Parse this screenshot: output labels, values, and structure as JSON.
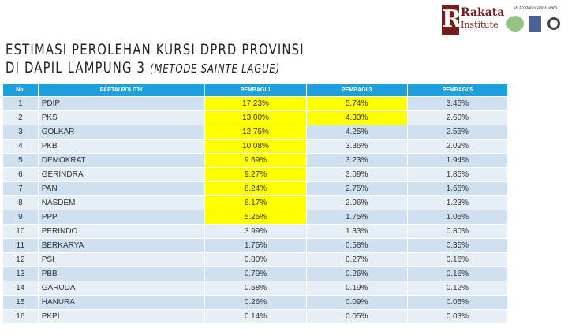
{
  "title": {
    "line1": "ESTIMASI PEROLEHAN KURSI DPRD PROVINSI",
    "line2": "DI DAPIL LAMPUNG 3",
    "subtitle": "(METODE SAINTE LAGUE)"
  },
  "logo": {
    "name": "Rakata",
    "sub": "Institute",
    "collab": "in Collaboration with"
  },
  "table": {
    "headers": [
      "No.",
      "PARTAI POLITIK",
      "PEMBAGI 1",
      "PEMBAGI 3",
      "PEMBAGI 5"
    ],
    "highlight_color": "#ffff00",
    "rows": [
      {
        "no": "1",
        "party": "PDIP",
        "p1": "17.23%",
        "p3": "5.74%",
        "p5": "3.45%",
        "h1": true,
        "h3": true
      },
      {
        "no": "2",
        "party": "PKS",
        "p1": "13.00%",
        "p3": "4.33%",
        "p5": "2.60%",
        "h1": true,
        "h3": true
      },
      {
        "no": "3",
        "party": "GOLKAR",
        "p1": "12.75%",
        "p3": "4.25%",
        "p5": "2.55%",
        "h1": true
      },
      {
        "no": "4",
        "party": "PKB",
        "p1": "10.08%",
        "p3": "3.36%",
        "p5": "2.02%",
        "h1": true
      },
      {
        "no": "5",
        "party": "DEMOKRAT",
        "p1": "9.69%",
        "p3": "3.23%",
        "p5": "1.94%",
        "h1": true
      },
      {
        "no": "6",
        "party": "GERINDRA",
        "p1": "9.27%",
        "p3": "3.09%",
        "p5": "1.85%",
        "h1": true
      },
      {
        "no": "7",
        "party": "PAN",
        "p1": "8.24%",
        "p3": "2.75%",
        "p5": "1.65%",
        "h1": true
      },
      {
        "no": "8",
        "party": "NASDEM",
        "p1": "6.17%",
        "p3": "2.06%",
        "p5": "1.23%",
        "h1": true
      },
      {
        "no": "9",
        "party": "PPP",
        "p1": "5.25%",
        "p3": "1.75%",
        "p5": "1.05%",
        "h1": true
      },
      {
        "no": "10",
        "party": "PERINDO",
        "p1": "3.99%",
        "p3": "1.33%",
        "p5": "0.80%"
      },
      {
        "no": "11",
        "party": "BERKARYA",
        "p1": "1.75%",
        "p3": "0.58%",
        "p5": "0.35%"
      },
      {
        "no": "12",
        "party": "PSI",
        "p1": "0.80%",
        "p3": "0.27%",
        "p5": "0.16%"
      },
      {
        "no": "13",
        "party": "PBB",
        "p1": "0.79%",
        "p3": "0.26%",
        "p5": "0.16%"
      },
      {
        "no": "14",
        "party": "GARUDA",
        "p1": "0.58%",
        "p3": "0.19%",
        "p5": "0.12%"
      },
      {
        "no": "15",
        "party": "HANURA",
        "p1": "0.26%",
        "p3": "0.09%",
        "p5": "0.05%"
      },
      {
        "no": "16",
        "party": "PKPI",
        "p1": "0.14%",
        "p3": "0.05%",
        "p5": "0.03%"
      }
    ]
  }
}
